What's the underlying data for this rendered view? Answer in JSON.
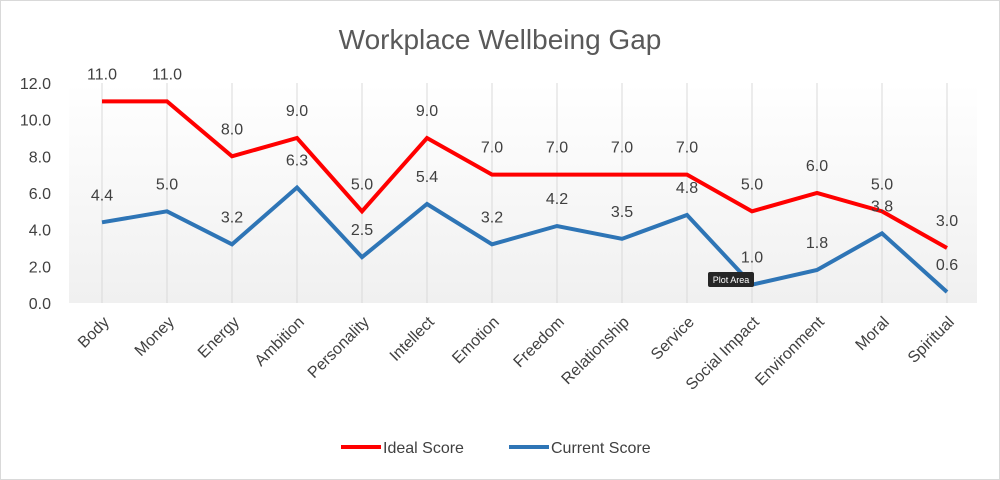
{
  "chart_data": {
    "type": "line",
    "title": "Workplace Wellbeing Gap",
    "xlabel": "",
    "ylabel": "",
    "ylim": [
      0,
      12
    ],
    "yticks": [
      "0.0",
      "2.0",
      "4.0",
      "6.0",
      "8.0",
      "10.0",
      "12.0"
    ],
    "categories": [
      "Body",
      "Money",
      "Energy",
      "Ambition",
      "Personality",
      "Intellect",
      "Emotion",
      "Freedom",
      "Relationship",
      "Service",
      "Social Impact",
      "Environment",
      "Moral",
      "Spiritual"
    ],
    "grid": {
      "vertical": true,
      "horizontal": false
    },
    "legend_position": "bottom",
    "series": [
      {
        "name": "Ideal Score",
        "color": "#ff0000",
        "values": [
          11.0,
          11.0,
          8.0,
          9.0,
          5.0,
          9.0,
          7.0,
          7.0,
          7.0,
          7.0,
          5.0,
          6.0,
          5.0,
          3.0
        ],
        "labels": [
          "11.0",
          "11.0",
          "8.0",
          "9.0",
          "5.0",
          "9.0",
          "7.0",
          "7.0",
          "7.0",
          "7.0",
          "5.0",
          "6.0",
          "5.0",
          "3.0"
        ]
      },
      {
        "name": "Current Score",
        "color": "#2e75b6",
        "values": [
          4.4,
          5.0,
          3.2,
          6.3,
          2.5,
          5.4,
          3.2,
          4.2,
          3.5,
          4.8,
          1.0,
          1.8,
          3.8,
          0.6
        ],
        "labels": [
          "4.4",
          "5.0",
          "3.2",
          "6.3",
          "2.5",
          "5.4",
          "3.2",
          "4.2",
          "3.5",
          "4.8",
          "1.0",
          "1.8",
          "3.8",
          "0.6"
        ]
      }
    ]
  },
  "tooltip": {
    "text": "Plot Area"
  }
}
